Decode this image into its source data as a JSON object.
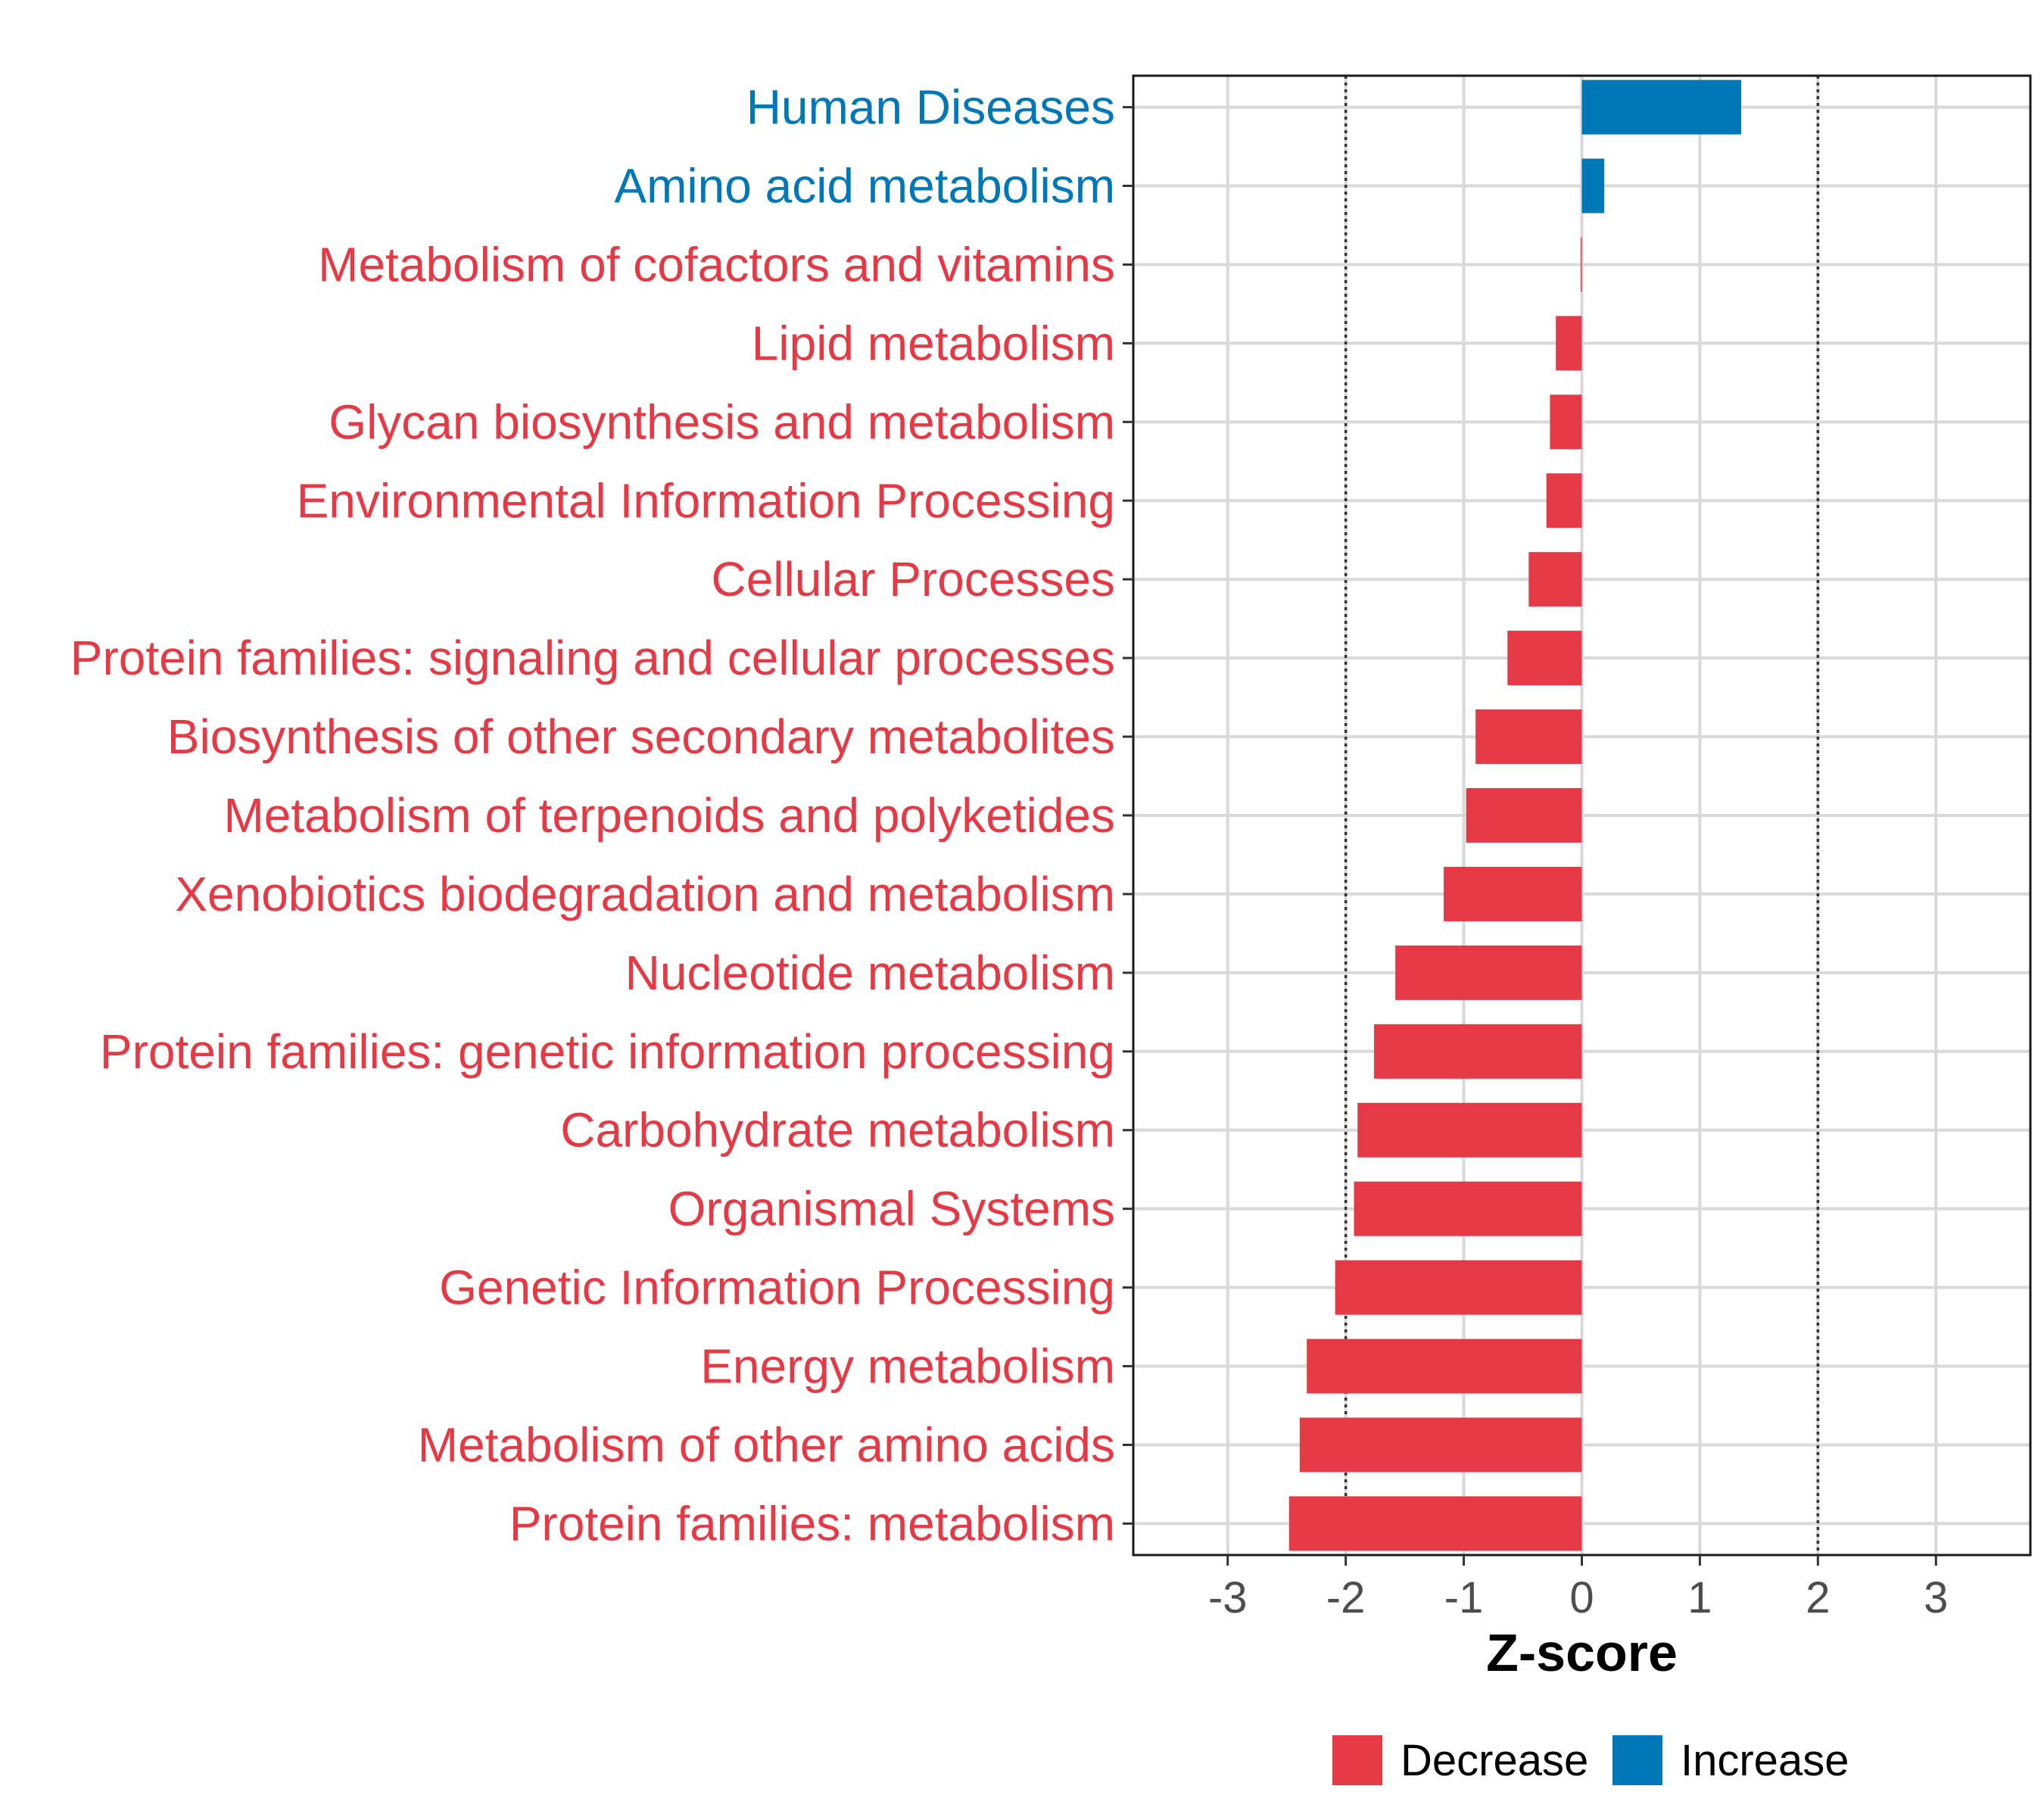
{
  "chart_data": {
    "type": "bar",
    "orientation": "horizontal",
    "title": "",
    "xlabel": "Z-score",
    "ylabel": "",
    "xlim": [
      -3.8,
      3.8
    ],
    "x_ticks": [
      "-3",
      "-2",
      "-1",
      "0",
      "1",
      "2",
      "3"
    ],
    "reference_lines": [
      -2,
      2
    ],
    "grid": true,
    "legend_position": "bottom",
    "categories": [
      "Human Diseases",
      "Amino acid metabolism",
      "Metabolism of cofactors and vitamins",
      "Lipid metabolism",
      "Glycan biosynthesis and metabolism",
      "Environmental Information Processing",
      "Cellular Processes",
      "Protein families: signaling and cellular processes",
      "Biosynthesis of other secondary metabolites",
      "Metabolism of terpenoids and polyketides",
      "Xenobiotics biodegradation and metabolism",
      "Nucleotide metabolism",
      "Protein families: genetic information processing",
      "Carbohydrate metabolism",
      "Organismal Systems",
      "Genetic Information Processing",
      "Energy metabolism",
      "Metabolism of other amino acids",
      "Protein families: metabolism"
    ],
    "values": [
      1.35,
      0.19,
      -0.01,
      -0.22,
      -0.27,
      -0.3,
      -0.45,
      -0.63,
      -0.9,
      -0.98,
      -1.17,
      -1.58,
      -1.76,
      -1.9,
      -1.93,
      -2.09,
      -2.33,
      -2.39,
      -2.48
    ],
    "groups": [
      "Increase",
      "Increase",
      "Decrease",
      "Decrease",
      "Decrease",
      "Decrease",
      "Decrease",
      "Decrease",
      "Decrease",
      "Decrease",
      "Decrease",
      "Decrease",
      "Decrease",
      "Decrease",
      "Decrease",
      "Decrease",
      "Decrease",
      "Decrease",
      "Decrease"
    ],
    "legend": [
      {
        "label": "Decrease",
        "color": "#e63946"
      },
      {
        "label": "Increase",
        "color": "#0077b6"
      }
    ]
  }
}
